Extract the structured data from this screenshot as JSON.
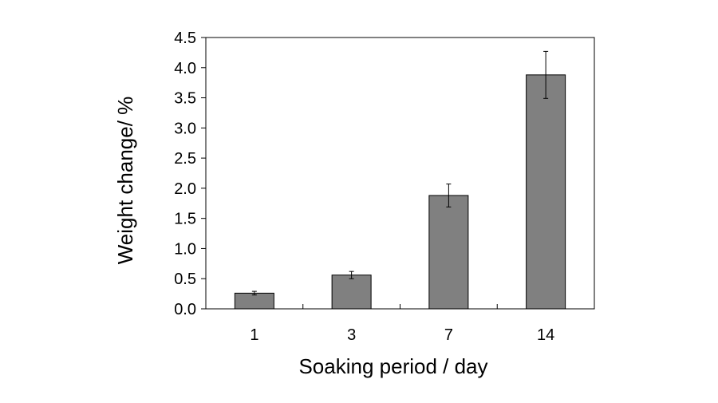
{
  "chart_data": {
    "type": "bar",
    "categories": [
      "1",
      "3",
      "7",
      "14"
    ],
    "values": [
      0.26,
      0.56,
      1.88,
      3.88
    ],
    "errors": [
      0.03,
      0.06,
      0.19,
      0.39
    ],
    "xlabel": "Soaking period / day",
    "ylabel": "Weight change/ %",
    "ylim": [
      0,
      4.5
    ],
    "yticks": [
      "0.0",
      "0.5",
      "1.0",
      "1.5",
      "2.0",
      "2.5",
      "3.0",
      "3.5",
      "4.0",
      "4.5"
    ],
    "bar_color": "#808080",
    "grid": false,
    "legend": "none"
  }
}
